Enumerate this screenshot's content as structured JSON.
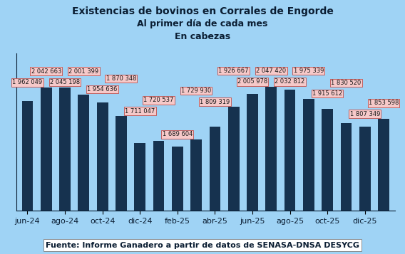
{
  "chart_data": {
    "type": "bar",
    "title": "Existencias de bovinos en Corrales de Engorde",
    "subtitle": [
      "Al primer día de cada mes",
      "En cabezas"
    ],
    "source": "Fuente: Informe Ganadero a partir de datos de SENASA-DNSA DESYCG",
    "categories": [
      "jun-24",
      null,
      "ago-24",
      null,
      "oct-24",
      null,
      "dic-24",
      null,
      "feb-25",
      null,
      "abr-25",
      null,
      "jun-25",
      null,
      "ago-25",
      null,
      "oct-25",
      null,
      "dic-25",
      null
    ],
    "values": [
      1962049,
      2042663,
      2045198,
      2001399,
      1954636,
      1870348,
      1711047,
      1720537,
      1689604,
      1729930,
      1809319,
      1926667,
      2005978,
      2047420,
      2032812,
      1975339,
      1915612,
      1830520,
      1807349,
      1853598
    ],
    "value_labels": [
      "1 962 049",
      "2 042 663",
      "2 045 198",
      "2 001 399",
      "1 954 636",
      "1 870 348",
      "1 711 047",
      "1 720 537",
      "1 689 604",
      "1 729 930",
      "1 809 319",
      "1 926 667",
      "2 005 978",
      "2 047 420",
      "2 032 812",
      "1 975 339",
      "1 915 612",
      "1 830 520",
      "1 807 349",
      "1 853 598"
    ],
    "color": "#16324f",
    "ylim": [
      1300000,
      2250000
    ],
    "grid": false,
    "data_labels": true,
    "tick_labels": "x"
  }
}
